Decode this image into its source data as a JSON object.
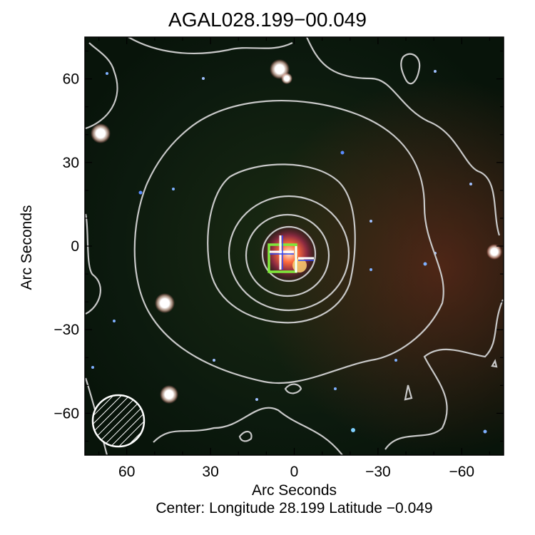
{
  "title": "AGAL028.199−00.049",
  "xlabel": "Arc Seconds",
  "ylabel": "Arc Seconds",
  "caption": "Center:  Longitude 28.199 Latitude −0.049",
  "axes": {
    "x_ticks": [
      {
        "value": 60,
        "label": "60"
      },
      {
        "value": 30,
        "label": "30"
      },
      {
        "value": 0,
        "label": "0"
      },
      {
        "value": -30,
        "label": "−30"
      },
      {
        "value": -60,
        "label": "−60"
      }
    ],
    "y_ticks": [
      {
        "value": 60,
        "label": "60"
      },
      {
        "value": 30,
        "label": "30"
      },
      {
        "value": 0,
        "label": "0"
      },
      {
        "value": -30,
        "label": "−30"
      },
      {
        "value": -60,
        "label": "−60"
      }
    ],
    "xlim": [
      75,
      -75
    ],
    "ylim": [
      -75,
      75
    ]
  },
  "colors": {
    "background": "#0c1a0e",
    "contour": "#c8c8c8",
    "marker_box": "#7ee83a",
    "marker_cross": "#ffffff",
    "star": "#ffffff",
    "star_halo": "#9fd6ff"
  },
  "beam": {
    "x": 62,
    "y": -62,
    "label": "beam-hatched-circle"
  }
}
